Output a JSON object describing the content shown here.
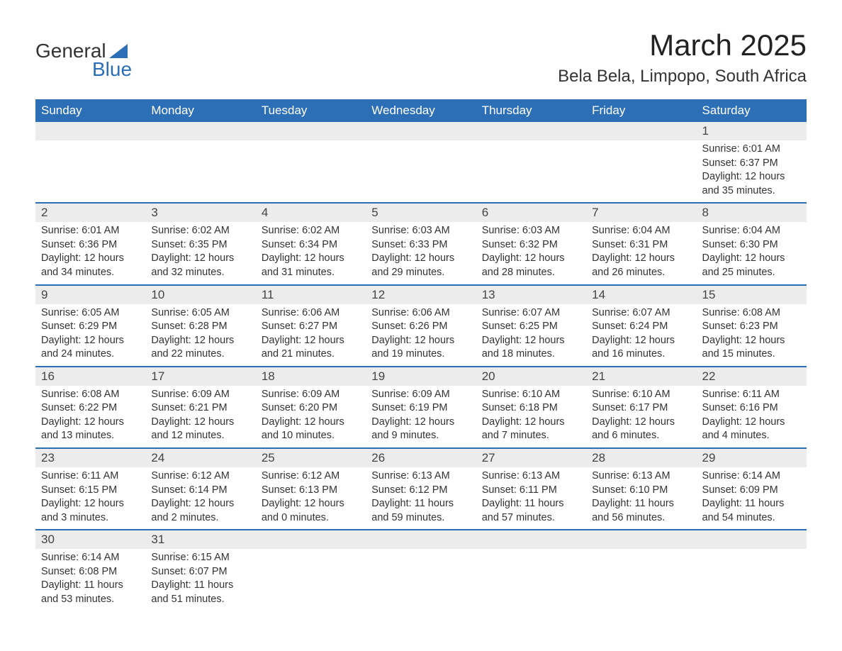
{
  "logo": {
    "line1": "General",
    "line2": "Blue"
  },
  "title": "March 2025",
  "location": "Bela Bela, Limpopo, South Africa",
  "colors": {
    "header_bg": "#2d6fb7",
    "header_text": "#ffffff",
    "daynum_bg": "#ececec",
    "row_border": "#2d6fb7",
    "text": "#333333",
    "background": "#ffffff"
  },
  "weekdays": [
    "Sunday",
    "Monday",
    "Tuesday",
    "Wednesday",
    "Thursday",
    "Friday",
    "Saturday"
  ],
  "weeks": [
    [
      null,
      null,
      null,
      null,
      null,
      null,
      {
        "n": "1",
        "sr": "6:01 AM",
        "ss": "6:37 PM",
        "dl": "12 hours and 35 minutes."
      }
    ],
    [
      {
        "n": "2",
        "sr": "6:01 AM",
        "ss": "6:36 PM",
        "dl": "12 hours and 34 minutes."
      },
      {
        "n": "3",
        "sr": "6:02 AM",
        "ss": "6:35 PM",
        "dl": "12 hours and 32 minutes."
      },
      {
        "n": "4",
        "sr": "6:02 AM",
        "ss": "6:34 PM",
        "dl": "12 hours and 31 minutes."
      },
      {
        "n": "5",
        "sr": "6:03 AM",
        "ss": "6:33 PM",
        "dl": "12 hours and 29 minutes."
      },
      {
        "n": "6",
        "sr": "6:03 AM",
        "ss": "6:32 PM",
        "dl": "12 hours and 28 minutes."
      },
      {
        "n": "7",
        "sr": "6:04 AM",
        "ss": "6:31 PM",
        "dl": "12 hours and 26 minutes."
      },
      {
        "n": "8",
        "sr": "6:04 AM",
        "ss": "6:30 PM",
        "dl": "12 hours and 25 minutes."
      }
    ],
    [
      {
        "n": "9",
        "sr": "6:05 AM",
        "ss": "6:29 PM",
        "dl": "12 hours and 24 minutes."
      },
      {
        "n": "10",
        "sr": "6:05 AM",
        "ss": "6:28 PM",
        "dl": "12 hours and 22 minutes."
      },
      {
        "n": "11",
        "sr": "6:06 AM",
        "ss": "6:27 PM",
        "dl": "12 hours and 21 minutes."
      },
      {
        "n": "12",
        "sr": "6:06 AM",
        "ss": "6:26 PM",
        "dl": "12 hours and 19 minutes."
      },
      {
        "n": "13",
        "sr": "6:07 AM",
        "ss": "6:25 PM",
        "dl": "12 hours and 18 minutes."
      },
      {
        "n": "14",
        "sr": "6:07 AM",
        "ss": "6:24 PM",
        "dl": "12 hours and 16 minutes."
      },
      {
        "n": "15",
        "sr": "6:08 AM",
        "ss": "6:23 PM",
        "dl": "12 hours and 15 minutes."
      }
    ],
    [
      {
        "n": "16",
        "sr": "6:08 AM",
        "ss": "6:22 PM",
        "dl": "12 hours and 13 minutes."
      },
      {
        "n": "17",
        "sr": "6:09 AM",
        "ss": "6:21 PM",
        "dl": "12 hours and 12 minutes."
      },
      {
        "n": "18",
        "sr": "6:09 AM",
        "ss": "6:20 PM",
        "dl": "12 hours and 10 minutes."
      },
      {
        "n": "19",
        "sr": "6:09 AM",
        "ss": "6:19 PM",
        "dl": "12 hours and 9 minutes."
      },
      {
        "n": "20",
        "sr": "6:10 AM",
        "ss": "6:18 PM",
        "dl": "12 hours and 7 minutes."
      },
      {
        "n": "21",
        "sr": "6:10 AM",
        "ss": "6:17 PM",
        "dl": "12 hours and 6 minutes."
      },
      {
        "n": "22",
        "sr": "6:11 AM",
        "ss": "6:16 PM",
        "dl": "12 hours and 4 minutes."
      }
    ],
    [
      {
        "n": "23",
        "sr": "6:11 AM",
        "ss": "6:15 PM",
        "dl": "12 hours and 3 minutes."
      },
      {
        "n": "24",
        "sr": "6:12 AM",
        "ss": "6:14 PM",
        "dl": "12 hours and 2 minutes."
      },
      {
        "n": "25",
        "sr": "6:12 AM",
        "ss": "6:13 PM",
        "dl": "12 hours and 0 minutes."
      },
      {
        "n": "26",
        "sr": "6:13 AM",
        "ss": "6:12 PM",
        "dl": "11 hours and 59 minutes."
      },
      {
        "n": "27",
        "sr": "6:13 AM",
        "ss": "6:11 PM",
        "dl": "11 hours and 57 minutes."
      },
      {
        "n": "28",
        "sr": "6:13 AM",
        "ss": "6:10 PM",
        "dl": "11 hours and 56 minutes."
      },
      {
        "n": "29",
        "sr": "6:14 AM",
        "ss": "6:09 PM",
        "dl": "11 hours and 54 minutes."
      }
    ],
    [
      {
        "n": "30",
        "sr": "6:14 AM",
        "ss": "6:08 PM",
        "dl": "11 hours and 53 minutes."
      },
      {
        "n": "31",
        "sr": "6:15 AM",
        "ss": "6:07 PM",
        "dl": "11 hours and 51 minutes."
      },
      null,
      null,
      null,
      null,
      null
    ]
  ],
  "labels": {
    "sunrise": "Sunrise:",
    "sunset": "Sunset:",
    "daylight": "Daylight:"
  }
}
